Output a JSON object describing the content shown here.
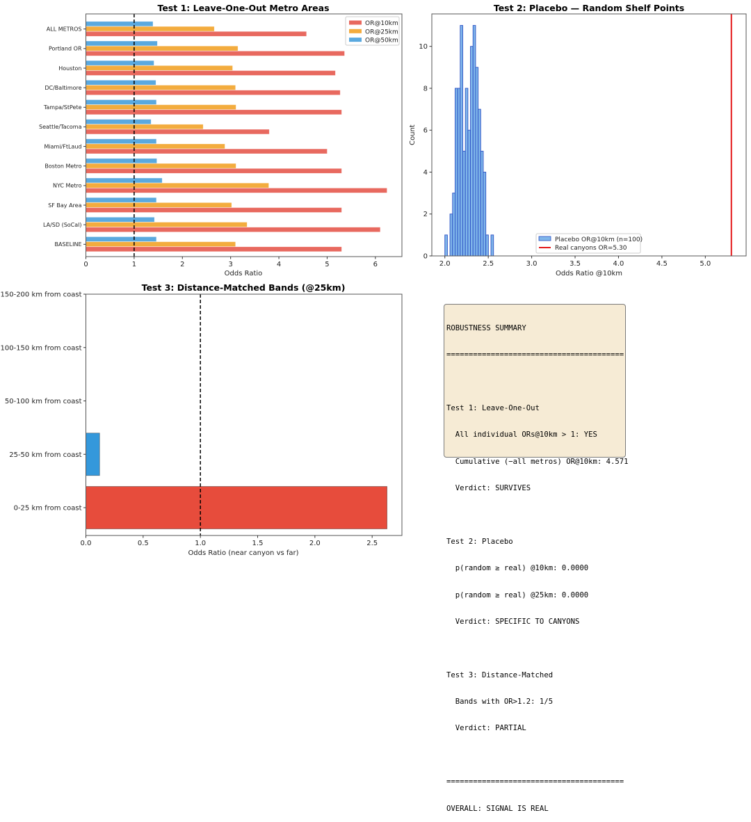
{
  "chart_data": [
    {
      "type": "bar",
      "orientation": "horizontal",
      "title": "Test 1: Leave-One-Out Metro Areas",
      "xlabel": "Odds Ratio",
      "ylabel": "",
      "xlim": [
        0,
        6.55
      ],
      "xticks": [
        "0",
        "1",
        "2",
        "3",
        "4",
        "5",
        "6"
      ],
      "reference_line": {
        "x": 1,
        "style": "dashed",
        "color": "#000000"
      },
      "legend": {
        "placement": "top-right",
        "entries": [
          "OR@10km",
          "OR@25km",
          "OR@50km"
        ]
      },
      "categories": [
        "BASELINE",
        "LA/SD (SoCal)",
        "SF Bay Area",
        "NYC Metro",
        "Boston Metro",
        "Miami/FtLaud",
        "Seattle/Tacoma",
        "Tampa/StPete",
        "DC/Baltimore",
        "Houston",
        "Portland OR",
        "ALL METROS"
      ],
      "series": [
        {
          "name": "OR@10km",
          "color": "#e8695f",
          "values": [
            5.3,
            6.1,
            5.3,
            6.24,
            5.3,
            5.0,
            3.8,
            5.3,
            5.27,
            5.17,
            5.36,
            4.571
          ]
        },
        {
          "name": "OR@25km",
          "color": "#f3ac3e",
          "values": [
            3.1,
            3.34,
            3.02,
            3.79,
            3.11,
            2.88,
            2.43,
            3.11,
            3.1,
            3.04,
            3.15,
            2.66
          ]
        },
        {
          "name": "OR@50km",
          "color": "#5aa9df",
          "values": [
            1.46,
            1.42,
            1.46,
            1.58,
            1.47,
            1.46,
            1.35,
            1.46,
            1.45,
            1.41,
            1.48,
            1.39
          ]
        }
      ]
    },
    {
      "type": "histogram",
      "title": "Test 2: Placebo — Random Shelf Points",
      "xlabel": "Odds Ratio @10km",
      "ylabel": "Count",
      "xlim": [
        1.85,
        5.47
      ],
      "ylim": [
        0,
        11.55
      ],
      "xticks": [
        "2.0",
        "2.5",
        "3.0",
        "3.5",
        "4.0",
        "4.5",
        "5.0"
      ],
      "yticks": [
        "0",
        "2",
        "4",
        "6",
        "8",
        "10"
      ],
      "bin_start": 2.0,
      "bin_width": 0.0295,
      "counts": [
        1,
        0,
        2,
        3,
        8,
        8,
        11,
        5,
        8,
        6,
        10,
        11,
        9,
        7,
        5,
        4,
        1,
        0,
        1
      ],
      "bar_color": "#7fb6ea",
      "edge_color": "#2b4fc4",
      "reference_line": {
        "x": 5.3,
        "color": "#e41a1c"
      },
      "legend": {
        "placement": "bottom-center",
        "entries": [
          "Placebo OR@10km (n=100)",
          "Real canyons OR=5.30"
        ]
      }
    },
    {
      "type": "bar",
      "orientation": "horizontal",
      "title": "Test 3: Distance-Matched Bands (@25km)",
      "xlabel": "Odds Ratio (near canyon vs far)",
      "ylabel": "",
      "xlim": [
        0,
        2.76
      ],
      "xticks": [
        "0.0",
        "0.5",
        "1.0",
        "1.5",
        "2.0",
        "2.5"
      ],
      "reference_line": {
        "x": 1.0,
        "style": "dashed",
        "color": "#000000"
      },
      "categories": [
        "0-25 km from coast",
        "25-50 km from coast",
        "50-100 km from coast",
        "100-150 km from coast",
        "150-200 km from coast"
      ],
      "values": [
        2.63,
        0.12,
        null,
        null,
        null
      ],
      "colors": [
        "#e74c3c",
        "#3498db",
        null,
        null,
        null
      ]
    }
  ],
  "summary": {
    "lines": [
      "ROBUSTNESS SUMMARY",
      "========================================",
      "",
      "Test 1: Leave-One-Out",
      "  All individual ORs@10km > 1: YES",
      "  Cumulative (−all metros) OR@10km: 4.571",
      "  Verdict: SURVIVES",
      "",
      "Test 2: Placebo",
      "  p(random ≥ real) @10km: 0.0000",
      "  p(random ≥ real) @25km: 0.0000",
      "  Verdict: SPECIFIC TO CANYONS",
      "",
      "Test 3: Distance-Matched",
      "  Bands with OR>1.2: 1/5",
      "  Verdict: PARTIAL",
      "",
      "========================================",
      "OVERALL: SIGNAL IS REAL"
    ]
  }
}
